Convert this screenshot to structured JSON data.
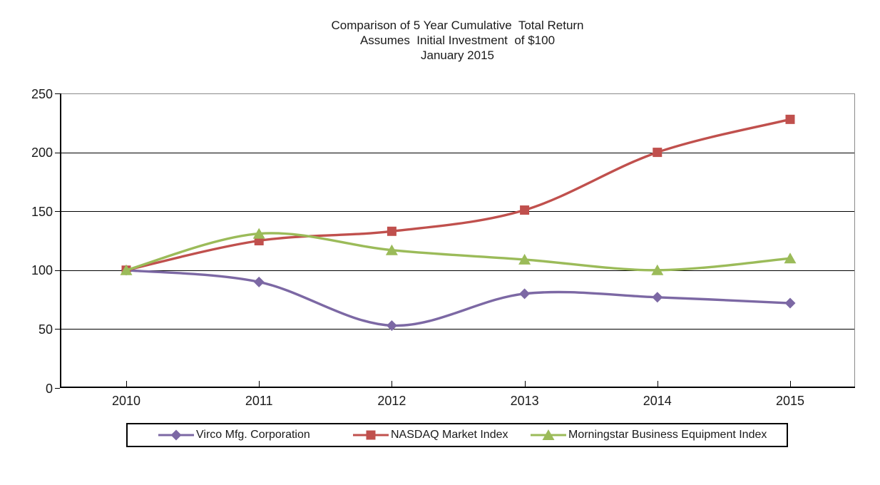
{
  "title": {
    "line1": "Comparison of 5 Year Cumulative  Total Return",
    "line2": "Assumes  Initial Investment  of $100",
    "line3": "January 2015"
  },
  "chart_data": {
    "type": "line",
    "smoothed": true,
    "title": "Comparison of 5 Year Cumulative Total Return",
    "subtitle": "Assumes Initial Investment of $100",
    "date_label": "January 2015",
    "categories": [
      "2010",
      "2011",
      "2012",
      "2013",
      "2014",
      "2015"
    ],
    "series": [
      {
        "name": "Virco Mfg. Corporation",
        "values": [
          100,
          90,
          53,
          80,
          77,
          72
        ],
        "color": "#7C68A4",
        "marker": "diamond"
      },
      {
        "name": "NASDAQ Market Index",
        "values": [
          100,
          125,
          133,
          151,
          200,
          228
        ],
        "color": "#C0504D",
        "marker": "square"
      },
      {
        "name": "Morningstar Business Equipment Index",
        "values": [
          100,
          131,
          117,
          109,
          100,
          110
        ],
        "color": "#9BBB59",
        "marker": "triangle"
      }
    ],
    "xlabel": "",
    "ylabel": "",
    "ylim": [
      0,
      250
    ],
    "yticks": [
      0,
      50,
      100,
      150,
      200,
      250
    ],
    "grid": true,
    "legend_position": "bottom"
  },
  "colors": {
    "grid": "#000000",
    "axis": "#000000",
    "plot_border": "#8a8a8a",
    "background": "#ffffff",
    "text": "#1a1a1a"
  }
}
